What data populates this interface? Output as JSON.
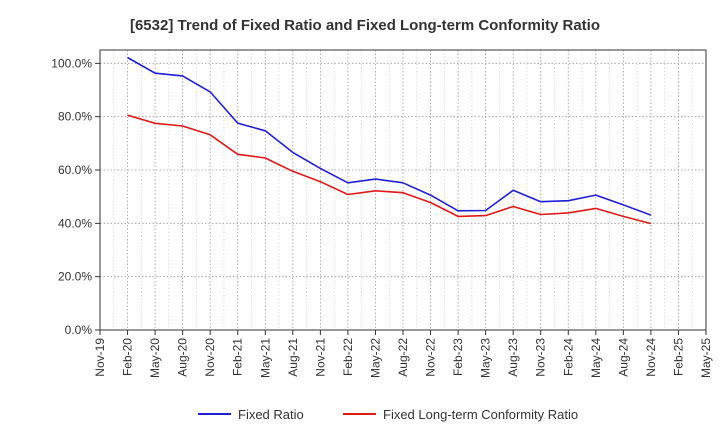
{
  "chart_data": {
    "type": "line",
    "title": "[6532]  Trend of Fixed Ratio and Fixed Long-term Conformity Ratio",
    "xlabel": "",
    "ylabel": "",
    "x_ticks": [
      "Nov-19",
      "Feb-20",
      "May-20",
      "Aug-20",
      "Nov-20",
      "Feb-21",
      "May-21",
      "Aug-21",
      "Nov-21",
      "Feb-22",
      "May-22",
      "Aug-22",
      "Nov-22",
      "Feb-23",
      "May-23",
      "Aug-23",
      "Nov-23",
      "Feb-24",
      "May-24",
      "Aug-24",
      "Nov-24",
      "Feb-25",
      "May-25"
    ],
    "y_ticks": [
      "0.0%",
      "20.0%",
      "40.0%",
      "60.0%",
      "80.0%",
      "100.0%"
    ],
    "ylim": [
      0,
      105
    ],
    "grid": true,
    "legend_position": "bottom",
    "series": [
      {
        "name": "Fixed Ratio",
        "color": "#1f1fd6",
        "x": [
          "Feb-20",
          "May-20",
          "Aug-20",
          "Nov-20",
          "Feb-21",
          "May-21",
          "Aug-21",
          "Nov-21",
          "Feb-22",
          "May-22",
          "Aug-22",
          "Nov-22",
          "Feb-23",
          "May-23",
          "Aug-23",
          "Nov-23",
          "Feb-24",
          "May-24",
          "Aug-24",
          "Nov-24"
        ],
        "values": [
          102.2,
          96.3,
          95.3,
          89.3,
          77.6,
          74.7,
          66.6,
          60.6,
          55.2,
          56.6,
          55.2,
          50.6,
          44.7,
          44.8,
          52.4,
          48.1,
          48.5,
          50.6,
          46.9,
          43.1
        ]
      },
      {
        "name": "Fixed Long-term Conformity Ratio",
        "color": "#e01818",
        "x": [
          "Feb-20",
          "May-20",
          "Aug-20",
          "Nov-20",
          "Feb-21",
          "May-21",
          "Aug-21",
          "Nov-21",
          "Feb-22",
          "May-22",
          "Aug-22",
          "Nov-22",
          "Feb-23",
          "May-23",
          "Aug-23",
          "Nov-23",
          "Feb-24",
          "May-24",
          "Aug-24",
          "Nov-24"
        ],
        "values": [
          80.6,
          77.5,
          76.5,
          73.2,
          65.9,
          64.5,
          59.5,
          55.6,
          50.8,
          52.2,
          51.5,
          47.8,
          42.6,
          42.9,
          46.3,
          43.3,
          43.9,
          45.6,
          42.6,
          39.9
        ]
      }
    ]
  }
}
